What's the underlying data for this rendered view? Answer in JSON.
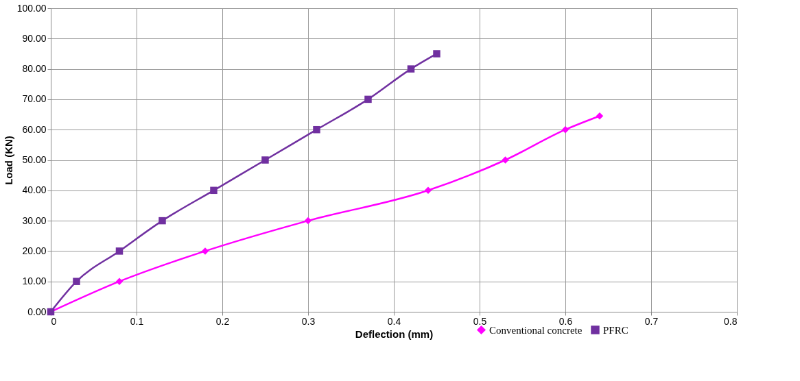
{
  "chart_data": {
    "type": "line",
    "xlabel": "Deflection (mm)",
    "ylabel": "Load (KN)",
    "xlim": [
      0,
      0.8
    ],
    "xticks": [
      0,
      0.1,
      0.2,
      0.3,
      0.4,
      0.5,
      0.6,
      0.7,
      0.8
    ],
    "ylim": [
      0,
      100
    ],
    "yticks": [
      {
        "value": 0,
        "label": "0.00"
      },
      {
        "value": 10,
        "label": "10.00"
      },
      {
        "value": 20,
        "label": "20.00"
      },
      {
        "value": 30,
        "label": "30.00"
      },
      {
        "value": 40,
        "label": "40.00"
      },
      {
        "value": 50,
        "label": "50.00"
      },
      {
        "value": 60,
        "label": "60.00"
      },
      {
        "value": 70,
        "label": "70.00"
      },
      {
        "value": 80,
        "label": "80.00"
      },
      {
        "value": 90,
        "label": "90.00"
      },
      {
        "value": 100,
        "label": "100.00"
      }
    ],
    "grid": true,
    "legend": "bottom right",
    "line_style": "solid",
    "series": [
      {
        "name": "Conventional concrete",
        "color": "#ff00ff",
        "marker": "diamond",
        "x": [
          0,
          0.08,
          0.18,
          0.3,
          0.44,
          0.53,
          0.6,
          0.64
        ],
        "values": [
          0,
          10,
          20,
          30,
          40,
          50,
          60,
          64.5
        ]
      },
      {
        "name": "PFRC",
        "color": "#7030a0",
        "marker": "square",
        "x": [
          0,
          0.03,
          0.08,
          0.13,
          0.19,
          0.25,
          0.31,
          0.37,
          0.42,
          0.45
        ],
        "values": [
          0,
          10,
          20,
          30,
          40,
          50,
          60,
          70,
          80,
          85
        ]
      }
    ]
  }
}
